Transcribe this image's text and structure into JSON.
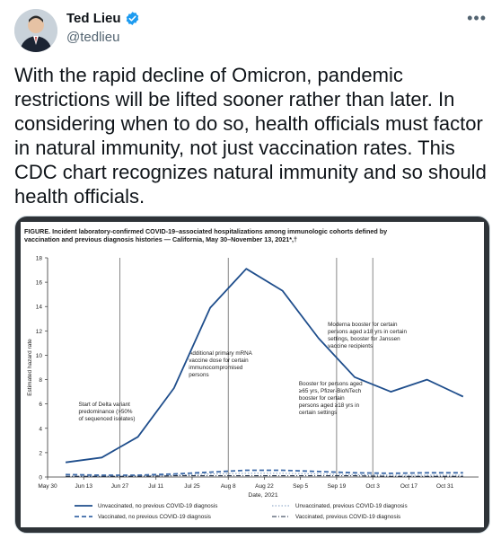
{
  "author": {
    "name": "Ted Lieu",
    "handle": "@tedlieu",
    "verified": true,
    "avatar_icon": "person-avatar",
    "more_icon": "more-horizontal-icon"
  },
  "tweet": {
    "text": "With the rapid decline of Omicron, pandemic restrictions will be lifted sooner rather than later. In considering when to do so, health officials must factor in natural immunity, not just vaccination rates. This CDC chart recognizes natural immunity and so should health officials."
  },
  "chart_data": {
    "type": "line",
    "title": "FIGURE. Incident laboratory-confirmed COVID-19–associated hospitalizations among immunologic cohorts defined by vaccination and previous diagnosis histories — California, May 30–November 13, 2021*,†",
    "xlabel": "Date, 2021",
    "ylabel": "Estimated hazard rate",
    "ylim": [
      0,
      18
    ],
    "yticks": [
      0,
      2,
      4,
      6,
      8,
      10,
      12,
      14,
      16,
      18
    ],
    "xticks": [
      "May 30",
      "Jun 13",
      "Jun 27",
      "Jul 11",
      "Jul 25",
      "Aug 8",
      "Aug 22",
      "Sep 5",
      "Sep 19",
      "Oct 3",
      "Oct 17",
      "Oct 31"
    ],
    "x": [
      "Jun 6",
      "Jun 20",
      "Jul 4",
      "Jul 18",
      "Aug 1",
      "Aug 15",
      "Aug 29",
      "Sep 12",
      "Sep 26",
      "Oct 10",
      "Oct 24",
      "Nov 7"
    ],
    "series": [
      {
        "name": "Unvaccinated, no previous COVID-19 diagnosis",
        "style": "solid-thick",
        "color": "#1f4e8c",
        "values": [
          1.2,
          1.6,
          3.3,
          7.3,
          13.9,
          17.1,
          15.3,
          11.4,
          8.2,
          7.0,
          8.0,
          6.6
        ]
      },
      {
        "name": "Unvaccinated, previous COVID-19 diagnosis",
        "style": "dotted",
        "color": "#7f9cc0",
        "values": [
          0.05,
          0.05,
          0.1,
          0.15,
          0.25,
          0.3,
          0.3,
          0.25,
          0.2,
          0.15,
          0.15,
          0.15
        ]
      },
      {
        "name": "Vaccinated, no previous COVID-19 diagnosis",
        "style": "dashed-thick",
        "color": "#3d6aa8",
        "values": [
          0.2,
          0.15,
          0.15,
          0.25,
          0.4,
          0.55,
          0.55,
          0.45,
          0.35,
          0.3,
          0.35,
          0.35
        ]
      },
      {
        "name": "Vaccinated, previous COVID-19 diagnosis",
        "style": "dash-dot",
        "color": "#1f2d44",
        "values": [
          0.05,
          0.05,
          0.05,
          0.1,
          0.1,
          0.1,
          0.1,
          0.1,
          0.1,
          0.05,
          0.05,
          0.05
        ]
      }
    ],
    "events": [
      {
        "at": "Jun 27",
        "label": [
          "Start of Delta variant",
          "predominance (>50%",
          "of sequenced isolates)"
        ]
      },
      {
        "at": "Aug 8",
        "label": [
          "Additional primary mRNA",
          "vaccine dose for certain",
          "immunocompromised",
          "persons"
        ]
      },
      {
        "at": "Sep 19",
        "label": [
          "Booster for persons aged",
          "≥65 yrs, Pfizer-BioNTech",
          "booster for certain",
          "persons aged ≥18 yrs in",
          "certain settings"
        ]
      },
      {
        "at": "Oct 3",
        "label": [
          "Moderna booster for certain",
          "persons aged ≥18 yrs in certain",
          "settings, booster for Janssen",
          "vaccine recipients"
        ]
      }
    ],
    "legend": "bottom",
    "grid": false
  }
}
